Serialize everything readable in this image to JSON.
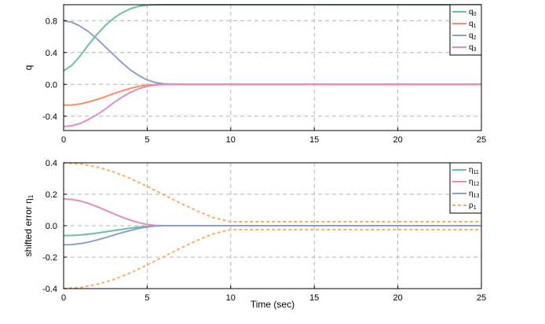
{
  "colors": {
    "q0": "#66c2a5",
    "q1": "#fc8d62",
    "q2": "#8da0cb",
    "q3": "#e78ac3",
    "eta11": "#66c2a5",
    "eta12": "#e78ac3",
    "eta13": "#8da0cb",
    "rho1": "#fdae61",
    "grid": "#b3b3b3",
    "axis": "#000000"
  },
  "chart_data": [
    {
      "type": "line",
      "xlabel": "",
      "ylabel": "q",
      "xlim": [
        0,
        25
      ],
      "ylim": [
        -0.58,
        1.0
      ],
      "xticks": [
        0,
        5,
        10,
        15,
        20,
        25
      ],
      "xticklabels": [
        "0",
        "5",
        "10",
        "15",
        "20",
        "25"
      ],
      "yticks": [
        -0.4,
        0.0,
        0.4,
        0.8
      ],
      "yticklabels": [
        "-0.4",
        "0.0",
        "0.4",
        "0.8"
      ],
      "grid": true,
      "legend_position": "top-right",
      "series": [
        {
          "name": "q",
          "sub": "0",
          "color_key": "q0",
          "dashed": false,
          "x": [
            0,
            0.5,
            1,
            1.5,
            2,
            2.5,
            3,
            3.5,
            4,
            4.5,
            5,
            5.5,
            6,
            7,
            25
          ],
          "y": [
            0.17,
            0.24,
            0.36,
            0.5,
            0.63,
            0.74,
            0.83,
            0.9,
            0.95,
            0.98,
            0.995,
            0.999,
            1.0,
            1.0,
            1.0
          ]
        },
        {
          "name": "q",
          "sub": "1",
          "color_key": "q1",
          "dashed": false,
          "x": [
            0,
            0.5,
            1,
            1.5,
            2,
            2.5,
            3,
            3.5,
            4,
            4.5,
            5,
            5.5,
            6,
            7,
            25
          ],
          "y": [
            -0.26,
            -0.26,
            -0.245,
            -0.22,
            -0.19,
            -0.155,
            -0.115,
            -0.08,
            -0.05,
            -0.025,
            -0.01,
            -0.003,
            0.0,
            0.0,
            0.0
          ]
        },
        {
          "name": "q",
          "sub": "2",
          "color_key": "q2",
          "dashed": false,
          "x": [
            0,
            0.5,
            1,
            1.5,
            2,
            2.5,
            3,
            3.5,
            4,
            4.5,
            5,
            5.5,
            6,
            6.5,
            7,
            25
          ],
          "y": [
            0.8,
            0.78,
            0.73,
            0.66,
            0.57,
            0.47,
            0.37,
            0.27,
            0.18,
            0.11,
            0.055,
            0.022,
            0.007,
            0.002,
            0.0,
            0.0
          ]
        },
        {
          "name": "q",
          "sub": "3",
          "color_key": "q3",
          "dashed": false,
          "x": [
            0,
            0.5,
            1,
            1.5,
            2,
            2.5,
            3,
            3.5,
            4,
            4.5,
            5,
            5.5,
            6,
            7,
            25
          ],
          "y": [
            -0.53,
            -0.52,
            -0.49,
            -0.44,
            -0.38,
            -0.31,
            -0.23,
            -0.16,
            -0.1,
            -0.055,
            -0.025,
            -0.008,
            -0.002,
            0.0,
            0.0
          ]
        }
      ]
    },
    {
      "type": "line",
      "xlabel": "Time (sec)",
      "ylabel": "shifted error η",
      "ylabel_sub": "1",
      "xlim": [
        0,
        25
      ],
      "ylim": [
        -0.4,
        0.4
      ],
      "xticks": [
        0,
        5,
        10,
        15,
        20,
        25
      ],
      "xticklabels": [
        "0",
        "5",
        "10",
        "15",
        "20",
        "25"
      ],
      "yticks": [
        -0.4,
        -0.2,
        0.0,
        0.2,
        0.4
      ],
      "yticklabels": [
        "-0.4",
        "-0.2",
        "0.0",
        "0.2",
        "0.4"
      ],
      "grid": true,
      "legend_position": "top-right",
      "series": [
        {
          "name": "η",
          "sub": "11",
          "color_key": "eta11",
          "dashed": false,
          "x": [
            0,
            0.5,
            1,
            1.5,
            2,
            2.5,
            3,
            3.5,
            4,
            4.5,
            5,
            5.5,
            6,
            7,
            25
          ],
          "y": [
            -0.063,
            -0.062,
            -0.059,
            -0.054,
            -0.047,
            -0.039,
            -0.031,
            -0.023,
            -0.015,
            -0.009,
            -0.004,
            -0.001,
            0.0,
            0.0,
            0.0
          ]
        },
        {
          "name": "η",
          "sub": "12",
          "color_key": "eta12",
          "dashed": false,
          "x": [
            0,
            0.5,
            1,
            1.5,
            2,
            2.5,
            3,
            3.5,
            4,
            4.5,
            5,
            5.5,
            6,
            7,
            25
          ],
          "y": [
            0.17,
            0.167,
            0.157,
            0.141,
            0.121,
            0.099,
            0.076,
            0.054,
            0.035,
            0.019,
            0.008,
            0.002,
            0.0,
            0.0,
            0.0
          ]
        },
        {
          "name": "η",
          "sub": "13",
          "color_key": "eta13",
          "dashed": false,
          "x": [
            0,
            0.5,
            1,
            1.5,
            2,
            2.5,
            3,
            3.5,
            4,
            4.5,
            5,
            5.5,
            6,
            7,
            25
          ],
          "y": [
            -0.122,
            -0.12,
            -0.114,
            -0.104,
            -0.091,
            -0.076,
            -0.06,
            -0.044,
            -0.03,
            -0.017,
            -0.008,
            -0.002,
            0.0,
            0.0,
            0.0
          ]
        },
        {
          "name": "ρ",
          "sub": "1",
          "color_key": "rho1",
          "dashed": true,
          "x": [
            0,
            1,
            2,
            3,
            4,
            5,
            6,
            7,
            8,
            9,
            10,
            25
          ],
          "y": [
            0.4,
            0.393,
            0.373,
            0.342,
            0.3,
            0.25,
            0.196,
            0.143,
            0.093,
            0.05,
            0.025,
            0.025
          ],
          "mirror": true
        }
      ]
    }
  ]
}
